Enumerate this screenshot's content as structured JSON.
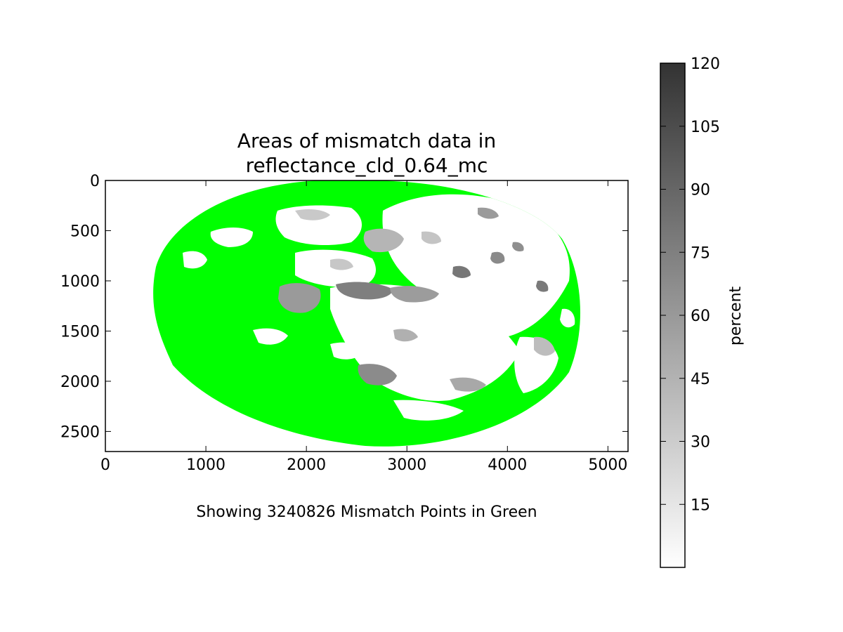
{
  "chart_data": {
    "type": "heatmap",
    "title_line1": "Areas of mismatch data in",
    "title_line2": "reflectance_cld_0.64_mc",
    "caption": "Showing 3240826 Mismatch Points in Green",
    "xlabel": "",
    "ylabel": "",
    "xlim": [
      0,
      5200
    ],
    "ylim": [
      2700,
      0
    ],
    "x_ticks": [
      "0",
      "1000",
      "2000",
      "3000",
      "4000",
      "5000"
    ],
    "y_ticks": [
      "0",
      "500",
      "1000",
      "1500",
      "2000",
      "2500"
    ],
    "x_tick_values": [
      0,
      1000,
      2000,
      3000,
      4000,
      5000
    ],
    "y_tick_values": [
      0,
      500,
      1000,
      1500,
      2000,
      2500
    ],
    "mismatch_count": 3240826,
    "mismatch_color": "#00ff00",
    "colorbar": {
      "label": "percent",
      "range": [
        0,
        120
      ],
      "ticks": [
        "15",
        "30",
        "45",
        "60",
        "75",
        "90",
        "105",
        "120"
      ],
      "tick_values": [
        15,
        30,
        45,
        60,
        75,
        90,
        105,
        120
      ],
      "colormap": "gray_r",
      "color_low": "#ffffff",
      "color_high": "#333333"
    }
  }
}
